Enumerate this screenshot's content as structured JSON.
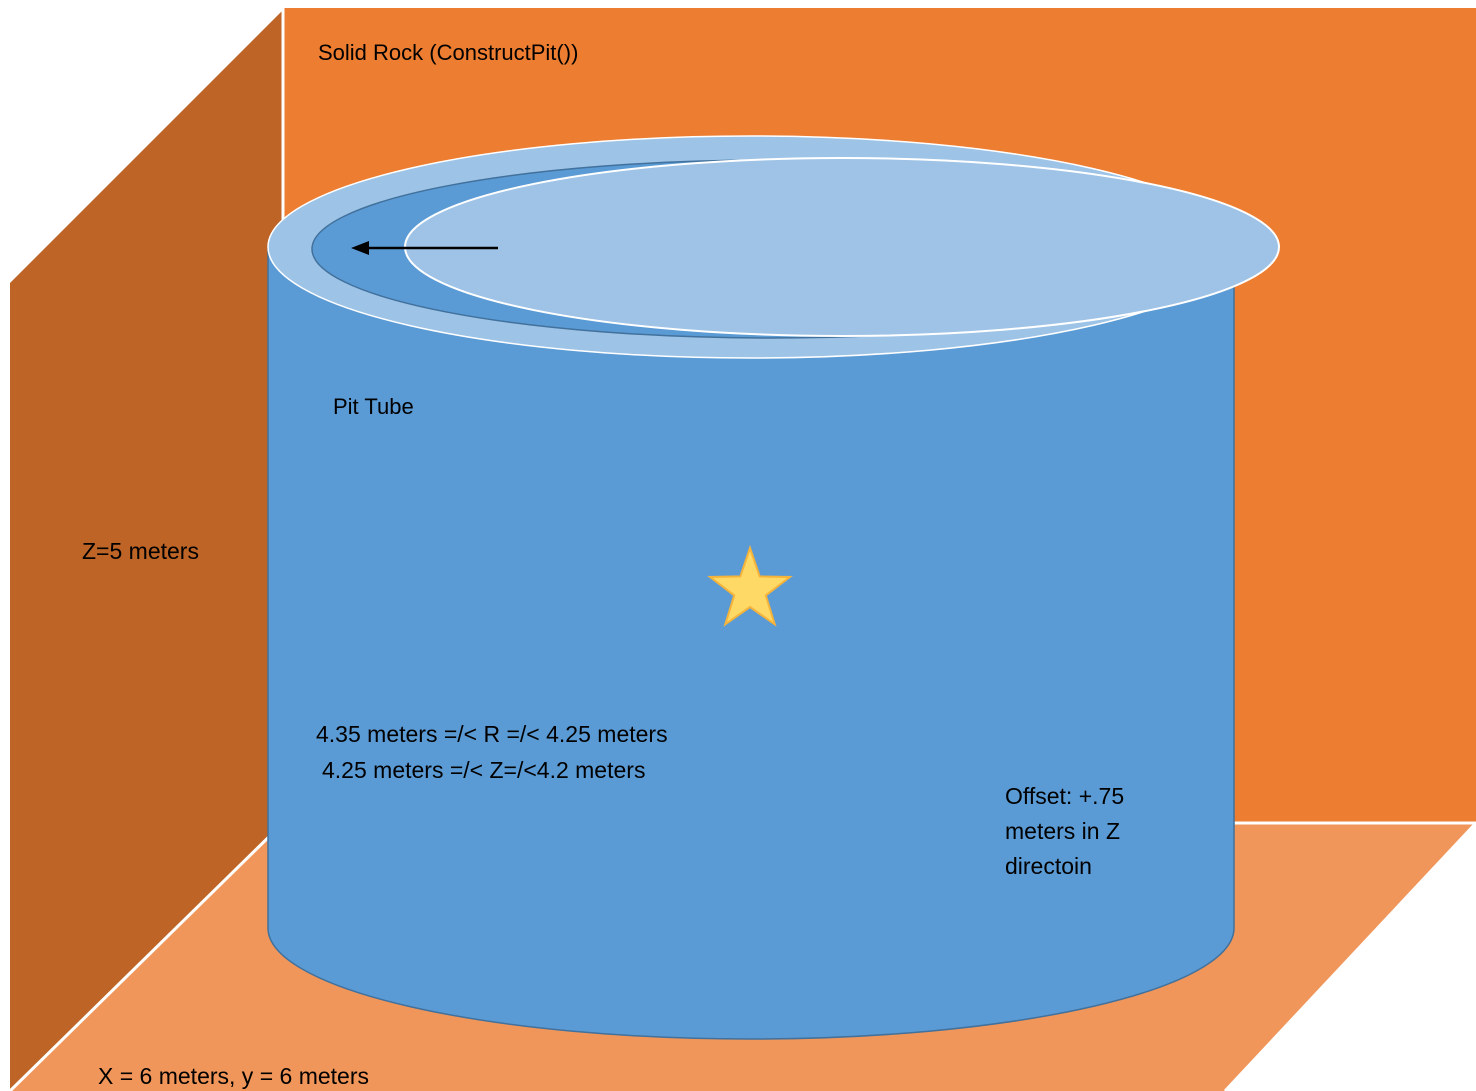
{
  "labels": {
    "solid_rock": "Solid Rock (ConstructPit())",
    "pit_tube": "Pit Tube",
    "z_height": "Z=5 meters",
    "r_range": "4.35 meters =/< R =/< 4.25 meters",
    "z_range": "4.25 meters =/< Z=/<4.2 meters",
    "offset": "Offset: +.75 meters in Z directoin",
    "xy_size": "X = 6 meters, y = 6 meters"
  },
  "colors": {
    "back_wall": "#ED7D31",
    "left_wall": "#BD6426",
    "floor": "#F0965A",
    "tube": "#5B9BD5",
    "ring": "#9DC3E6",
    "inner_lid": "#9FC3E6",
    "star_fill": "#FFD966",
    "star_stroke": "#F4B33A",
    "arrow": "#000000"
  },
  "icons": {
    "star": "star-icon",
    "arrow": "arrow-left-icon"
  }
}
